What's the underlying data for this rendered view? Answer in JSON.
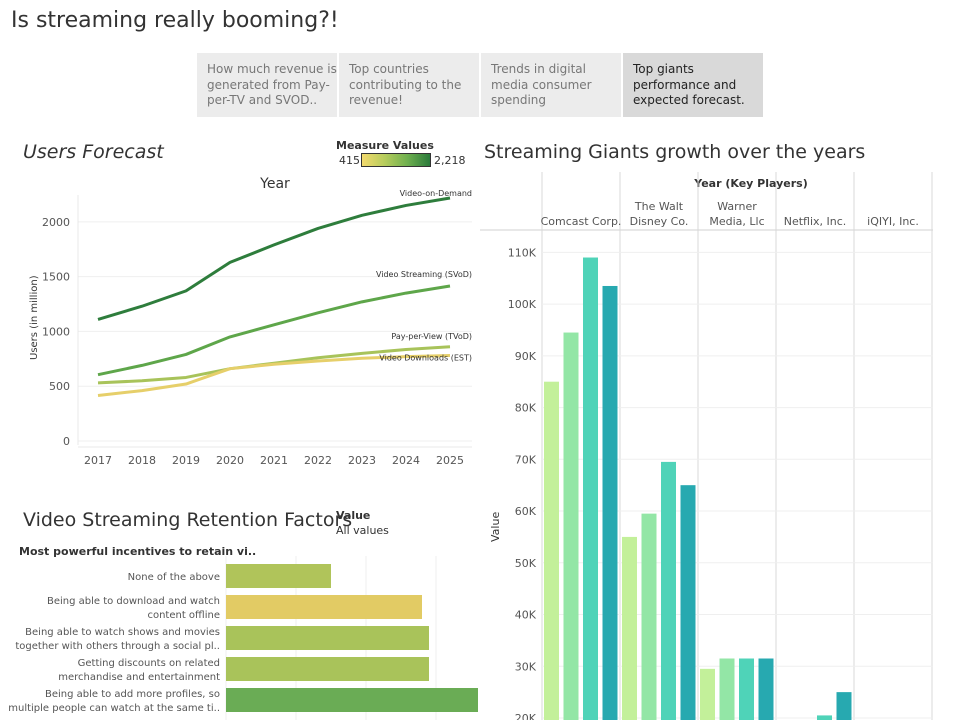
{
  "title": "Is streaming really booming?!",
  "tabs": [
    {
      "label": "How much revenue is generated from Pay-per-TV and SVOD.."
    },
    {
      "label": "Top countries contributing to the revenue!"
    },
    {
      "label": "Trends in digital media consumer spending"
    },
    {
      "label": "Top giants performance and expected forecast."
    }
  ],
  "users_forecast": {
    "title": "Users Forecast",
    "legend_title": "Measure Values",
    "legend_min": "415",
    "legend_max": "2,218"
  },
  "retention": {
    "title": "Video Streaming Retention Factors",
    "filter_label": "Value",
    "filter_value": "All values",
    "column_header": "Most powerful incentives to retain vi.."
  },
  "giants": {
    "title": "Streaming Giants growth over the years"
  },
  "chart_data": [
    {
      "type": "line",
      "title": "Year",
      "xlabel": "Year",
      "ylabel": "Users (in million)",
      "x": [
        2017,
        2018,
        2019,
        2020,
        2021,
        2022,
        2023,
        2024,
        2025
      ],
      "ylim": [
        0,
        2300
      ],
      "yticks": [
        0,
        500,
        1000,
        1500,
        2000
      ],
      "grid": true,
      "series": [
        {
          "name": "Video-on-Demand",
          "color": "#2e7d3c",
          "values": [
            1110,
            1230,
            1370,
            1630,
            1790,
            1940,
            2060,
            2150,
            2218
          ]
        },
        {
          "name": "Video Streaming (SVoD)",
          "color": "#5ea64a",
          "values": [
            605,
            690,
            790,
            950,
            1060,
            1170,
            1270,
            1350,
            1415
          ]
        },
        {
          "name": "Pay-per-View (TVoD)",
          "color": "#a8c35a",
          "values": [
            530,
            550,
            580,
            660,
            710,
            760,
            800,
            835,
            860
          ]
        },
        {
          "name": "Video Downloads (EST)",
          "color": "#e6cf6a",
          "values": [
            415,
            460,
            520,
            660,
            700,
            730,
            755,
            770,
            780
          ]
        }
      ]
    },
    {
      "type": "bar",
      "orientation": "horizontal",
      "categories": [
        "None of the above",
        "Being able to download and watch content offline",
        "Being able to watch shows and movies together with others through a social pl..",
        "Getting discounts on related merchandise and entertainment",
        "Being able to add more profiles, so multiple people can watch at the same ti.."
      ],
      "category_lines": [
        [
          "None of the above"
        ],
        [
          "Being able to download and watch",
          "content offline"
        ],
        [
          "Being able to watch shows and movies",
          "together with others through a social pl.."
        ],
        [
          "Getting discounts on related",
          "merchandise and entertainment"
        ],
        [
          "Being able to add more profiles, so",
          "multiple people can watch at the same ti.."
        ]
      ],
      "values": [
        15,
        28,
        29,
        29,
        36
      ],
      "colors": [
        "#b0c45a",
        "#e2cb64",
        "#a9c35a",
        "#a9c35a",
        "#6aac55"
      ],
      "xlim": [
        0,
        50
      ]
    },
    {
      "type": "bar",
      "title": "Year (Key Players)",
      "ylabel": "Value",
      "groups": [
        "Comcast Corp.",
        "The Walt Disney Co.",
        "Warner Media, Llc",
        "Netflix, Inc.",
        "iQIYI, Inc."
      ],
      "group_lines": [
        [
          "Comcast Corp."
        ],
        [
          "The Walt",
          "Disney Co."
        ],
        [
          "Warner",
          "Media, Llc"
        ],
        [
          "Netflix, Inc."
        ],
        [
          "iQIYI, Inc."
        ]
      ],
      "series_colors": [
        "#c3f09a",
        "#93e6a6",
        "#4fd3b8",
        "#27a9b0"
      ],
      "values": [
        [
          85000,
          94500,
          109000,
          103500
        ],
        [
          55000,
          59500,
          69500,
          65000
        ],
        [
          29500,
          31500,
          31500,
          31500
        ],
        [
          null,
          null,
          20500,
          25000
        ],
        [
          null,
          null,
          null,
          null
        ]
      ],
      "ylim": [
        20000,
        112000
      ],
      "yticks": [
        20000,
        30000,
        40000,
        50000,
        60000,
        70000,
        80000,
        90000,
        100000,
        110000
      ],
      "ytick_labels": [
        "20K",
        "30K",
        "40K",
        "50K",
        "60K",
        "70K",
        "80K",
        "90K",
        "100K",
        "110K"
      ]
    }
  ]
}
